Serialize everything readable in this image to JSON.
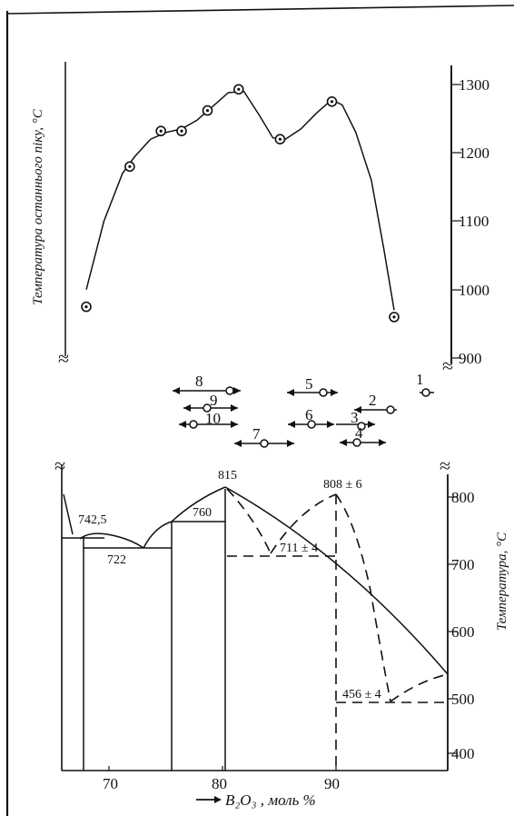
{
  "chart_data": [
    {
      "type": "scatter",
      "ylabel": "Температура останнього піку, °C",
      "yticks": [
        "1300",
        "1200",
        "1100",
        "1000",
        "900"
      ],
      "ylim": [
        900,
        1300
      ],
      "points": [
        {
          "x": 66.8,
          "y": 975
        },
        {
          "x": 71.0,
          "y": 1180
        },
        {
          "x": 74.0,
          "y": 1232
        },
        {
          "x": 76.0,
          "y": 1232
        },
        {
          "x": 78.5,
          "y": 1262
        },
        {
          "x": 81.5,
          "y": 1293
        },
        {
          "x": 85.5,
          "y": 1220
        },
        {
          "x": 90.5,
          "y": 1275
        },
        {
          "x": 96.5,
          "y": 960
        }
      ],
      "curve": [
        [
          66.8,
          1000
        ],
        [
          68.5,
          1100
        ],
        [
          70.3,
          1170
        ],
        [
          71.5,
          1195
        ],
        [
          73.0,
          1220
        ],
        [
          74.5,
          1230
        ],
        [
          76.0,
          1235
        ],
        [
          77.5,
          1248
        ],
        [
          79.0,
          1268
        ],
        [
          80.5,
          1288
        ],
        [
          82.0,
          1290
        ],
        [
          83.5,
          1255
        ],
        [
          84.8,
          1222
        ],
        [
          86.0,
          1220
        ],
        [
          87.5,
          1235
        ],
        [
          89.0,
          1258
        ],
        [
          90.5,
          1278
        ],
        [
          91.5,
          1270
        ],
        [
          92.8,
          1230
        ],
        [
          94.3,
          1160
        ],
        [
          95.5,
          1060
        ],
        [
          96.5,
          970
        ]
      ]
    },
    {
      "type": "line",
      "xlabel": "B₂O₃ , моль %",
      "ylabel": "Температура, °C",
      "xticks": [
        "70",
        "80",
        "90"
      ],
      "yticks": [
        "800",
        "700",
        "600",
        "500",
        "400"
      ],
      "ylim": [
        400,
        800
      ],
      "annotations": [
        "815",
        "808 ± 6",
        "742,5",
        "760",
        "722",
        "711 ± 4",
        "456 ± 4"
      ]
    }
  ],
  "markers": [
    "1",
    "2",
    "3",
    "4",
    "5",
    "6",
    "7",
    "8",
    "9",
    "10"
  ]
}
